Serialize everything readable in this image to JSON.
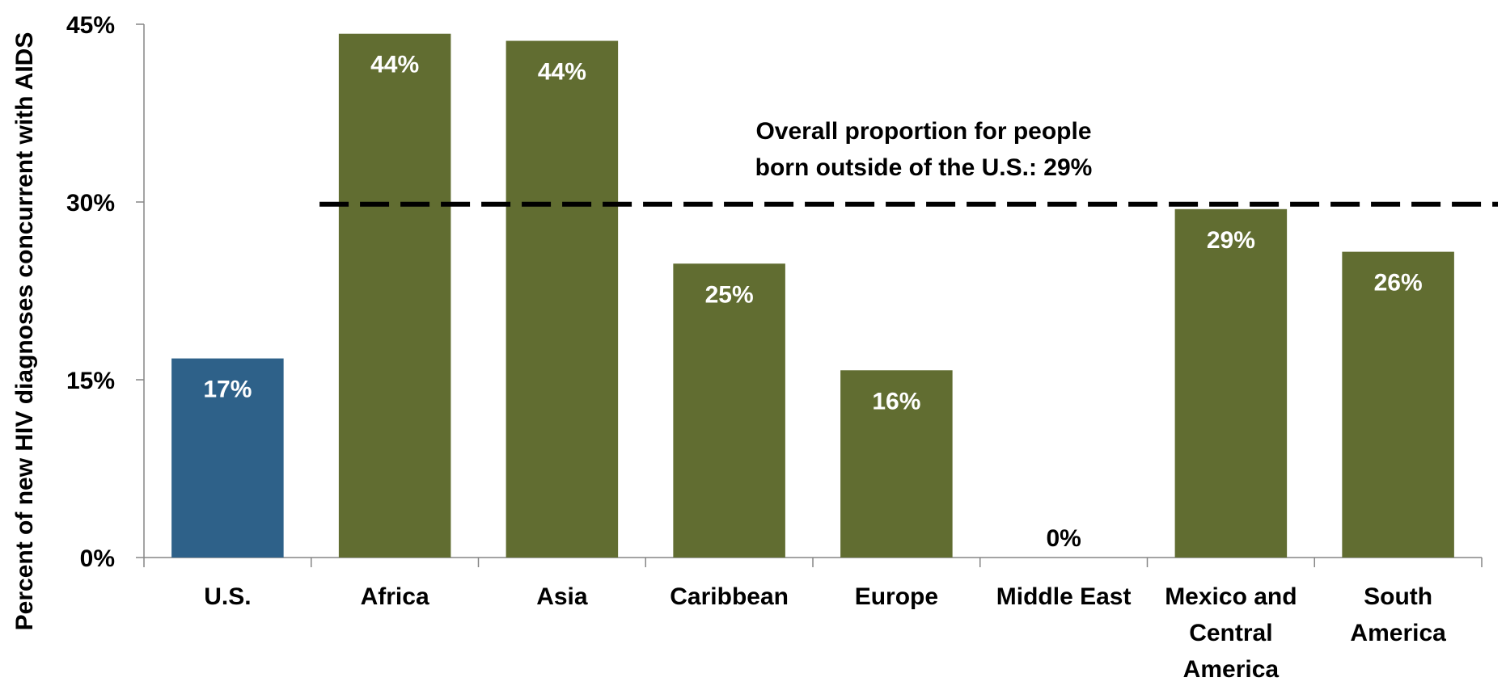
{
  "chart_data": {
    "type": "bar",
    "title": "",
    "xlabel": "",
    "ylabel": "Percent of new HIV diagnoses concurrent with AIDS",
    "ylim": [
      0,
      45
    ],
    "yticks": [
      0,
      15,
      30,
      45
    ],
    "ytick_labels": [
      "0%",
      "15%",
      "30%",
      "45%"
    ],
    "grid": false,
    "legend": "none",
    "categories": [
      "U.S.",
      "Africa",
      "Asia",
      "Caribbean",
      "Europe",
      "Middle East",
      "Mexico and Central America",
      "South America"
    ],
    "category_labels": [
      [
        "U.S."
      ],
      [
        "Africa"
      ],
      [
        "Asia"
      ],
      [
        "Caribbean"
      ],
      [
        "Europe"
      ],
      [
        "Middle East"
      ],
      [
        "Mexico and",
        "Central",
        "America"
      ],
      [
        "South",
        "America"
      ]
    ],
    "values": [
      16.8,
      44.2,
      43.6,
      24.8,
      15.8,
      0,
      29.4,
      25.8
    ],
    "data_labels": [
      "17%",
      "44%",
      "44%",
      "25%",
      "16%",
      "0%",
      "29%",
      "26%"
    ],
    "bar_colors": [
      "#2E6189",
      "#616D31",
      "#616D31",
      "#616D31",
      "#616D31",
      "#616D31",
      "#616D31",
      "#616D31"
    ],
    "reference_line": {
      "value": 29.4,
      "style": "dashed",
      "color": "#000000",
      "label_lines": [
        "Overall proportion for people",
        "born outside of the U.S.: 29%"
      ]
    }
  }
}
